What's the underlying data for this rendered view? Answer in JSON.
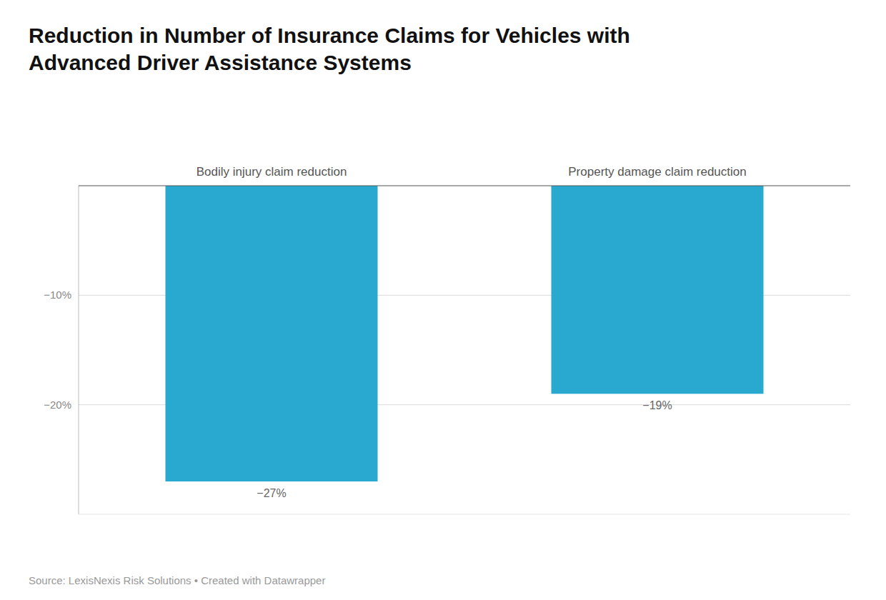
{
  "chart_data": {
    "type": "bar",
    "title": "Reduction in Number of Insurance Claims for Vehicles with\nAdvanced Driver Assistance Systems",
    "categories": [
      "Bodily injury claim reduction",
      "Property damage claim reduction"
    ],
    "values": [
      -27,
      -19
    ],
    "value_labels": [
      "−27%",
      "−19%"
    ],
    "data_labels": true,
    "color": "#29a8d0",
    "ylim": [
      -30,
      0
    ],
    "yticks": [
      {
        "value": -10,
        "label": "−10%"
      },
      {
        "value": -20,
        "label": "−20%"
      }
    ],
    "grid": true,
    "annotations": [
      "Source: LexisNexis Risk Solutions • Created with Datawrapper"
    ]
  }
}
